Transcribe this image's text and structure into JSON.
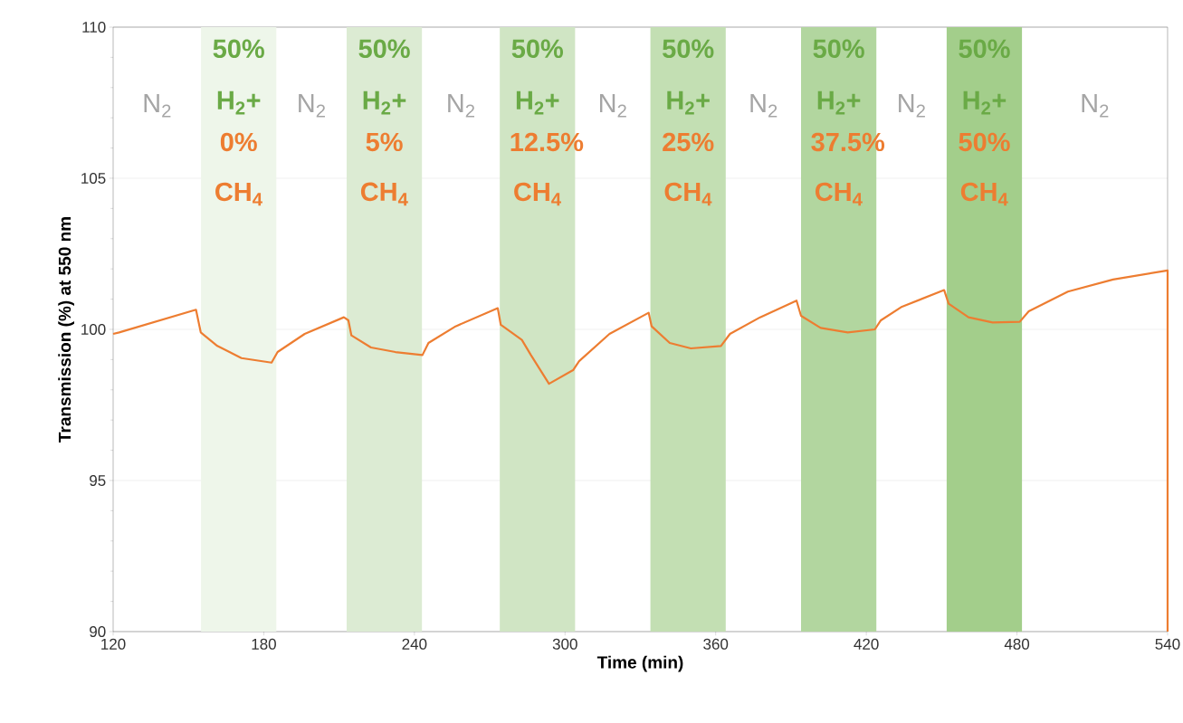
{
  "chart_data": {
    "type": "line",
    "xlabel": "Time (min)",
    "ylabel": "Transmission (%) at 550 nm",
    "x": [
      120,
      122.4,
      153.0,
      154.9,
      161.5,
      171.1,
      183.1,
      185.5,
      196.3,
      211.9,
      213.7,
      214.9,
      222.7,
      232.4,
      243.2,
      245.6,
      256.4,
      273.2,
      274.4,
      282.8,
      286.4,
      293.6,
      303.2,
      305.6,
      317.7,
      333.3,
      334.5,
      341.7,
      350.1,
      362.1,
      365.7,
      377.7,
      392.2,
      394.0,
      401.8,
      412.6,
      423.4,
      425.8,
      434.2,
      451.0,
      452.8,
      460.7,
      470.3,
      481.1,
      484.7,
      500.3,
      518.3,
      540,
      540
    ],
    "series": [
      {
        "color": "#ed7d31",
        "values": [
          99.85,
          99.9,
          100.65,
          99.9,
          99.45,
          99.05,
          98.9,
          99.25,
          99.85,
          100.4,
          100.3,
          99.8,
          99.4,
          99.25,
          99.15,
          99.55,
          100.1,
          100.7,
          100.15,
          99.65,
          99.15,
          98.2,
          98.65,
          98.95,
          99.85,
          100.55,
          100.1,
          99.55,
          99.37,
          99.45,
          99.85,
          100.4,
          100.95,
          100.45,
          100.05,
          99.9,
          100.0,
          100.3,
          100.75,
          101.3,
          100.85,
          100.4,
          100.23,
          100.25,
          100.6,
          101.25,
          101.65,
          101.95,
          90
        ]
      }
    ],
    "xlim": [
      120,
      540
    ],
    "xticks": [
      120,
      180,
      240,
      300,
      360,
      420,
      480,
      540
    ],
    "ylim": [
      90,
      110
    ],
    "yticks": [
      90,
      95,
      100,
      105,
      110
    ],
    "grid": "y",
    "marker": "none",
    "line_style": "solid",
    "bands": [
      {
        "axis": "x",
        "from": 155,
        "to": 185,
        "label": "50% H$_{2}$+",
        "color": "#eef6ea"
      },
      {
        "axis": "x",
        "from": 213,
        "to": 243,
        "label": "50% H$_{2}$+",
        "color": "#dcebd3"
      },
      {
        "axis": "x",
        "from": 274,
        "to": 304,
        "label": "50% H$_{2}$+",
        "color": "#d0e5c4"
      },
      {
        "axis": "x",
        "from": 334,
        "to": 364,
        "label": "50% H$_{2}$+",
        "color": "#c3dfb3"
      },
      {
        "axis": "x",
        "from": 394,
        "to": 424,
        "label": "50% H$_{2}$+",
        "color": "#b2d69f"
      },
      {
        "axis": "x",
        "from": 452,
        "to": 482,
        "label": "50% H$_{2}$+",
        "color": "#a3ce8b"
      }
    ],
    "annotations": [
      "N$_{2}$",
      "0% CH$_{4}$",
      "N$_{2}$",
      "5% CH$_{4}$",
      "N$_{2}$",
      "12.5% CH$_{4}$",
      "N$_{2}$",
      "25% CH$_{4}$",
      "N$_{2}$",
      "37.5% CH$_{4}$",
      "N$_{2}$",
      "50% CH$_{4}$",
      "N$_{2}$"
    ]
  }
}
